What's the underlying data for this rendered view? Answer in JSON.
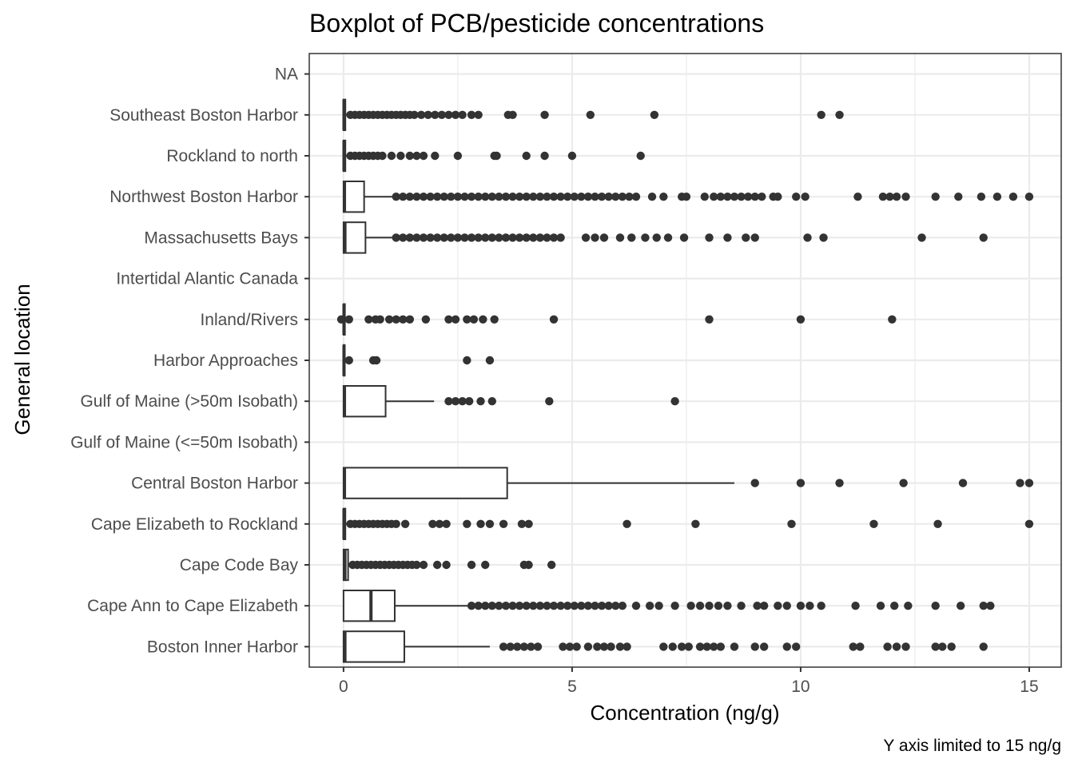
{
  "chart_data": {
    "type": "boxplot",
    "orientation": "horizontal",
    "title": "Boxplot of PCB/pesticide concentrations",
    "xlabel": "Concentration (ng/g)",
    "ylabel": "General location",
    "caption": "Y axis limited to 15 ng/g",
    "xlim": [
      -0.75,
      15.7
    ],
    "xticks": [
      0,
      5,
      10,
      15
    ],
    "grid": true,
    "theme": "bw",
    "colors": {
      "box": "#333333",
      "point": "#333333",
      "grid": "#ebebeb",
      "panel_border": "#333333"
    },
    "categories": [
      "NA",
      "Southeast Boston Harbor",
      "Rockland to north",
      "Northwest Boston Harbor",
      "Massachusetts Bays",
      "Intertidal Alantic Canada",
      "Inland/Rivers",
      "Harbor Approaches",
      "Gulf of Maine (>50m Isobath)",
      "Gulf of Maine (<=50m Isobath)",
      "Central Boston Harbor",
      "Cape Elizabeth to Rockland",
      "Cape Code Bay",
      "Cape Ann to Cape Elizabeth",
      "Boston Inner Harbor"
    ],
    "boxes": [
      null,
      {
        "min": 0,
        "q1": 0,
        "median": 0.01,
        "q3": 0.04,
        "max": 0.07,
        "outliers": [
          0.15,
          0.25,
          0.35,
          0.45,
          0.55,
          0.65,
          0.75,
          0.85,
          0.95,
          1.05,
          1.15,
          1.25,
          1.35,
          1.45,
          1.55,
          1.7,
          1.85,
          2.0,
          2.15,
          2.3,
          2.45,
          2.6,
          2.8,
          2.95,
          3.6,
          3.7,
          4.4,
          5.4,
          6.8,
          10.45,
          10.85
        ]
      },
      {
        "min": 0,
        "q1": 0,
        "median": 0.01,
        "q3": 0.04,
        "max": 0.07,
        "outliers": [
          0.15,
          0.25,
          0.35,
          0.45,
          0.55,
          0.65,
          0.75,
          0.85,
          1.05,
          1.25,
          1.45,
          1.6,
          1.75,
          2.0,
          2.5,
          3.3,
          3.35,
          4.0,
          4.4,
          5.0,
          6.5
        ]
      },
      {
        "min": 0,
        "q1": 0,
        "median": 0.02,
        "q3": 0.45,
        "max": 1.1,
        "outliers": [
          1.15,
          1.3,
          1.45,
          1.6,
          1.75,
          1.9,
          2.05,
          2.2,
          2.35,
          2.5,
          2.65,
          2.8,
          2.95,
          3.1,
          3.25,
          3.4,
          3.55,
          3.7,
          3.85,
          4.0,
          4.15,
          4.3,
          4.45,
          4.6,
          4.75,
          4.9,
          5.05,
          5.2,
          5.35,
          5.5,
          5.65,
          5.8,
          5.95,
          6.1,
          6.25,
          6.4,
          6.75,
          7.0,
          7.4,
          7.5,
          7.9,
          8.1,
          8.25,
          8.4,
          8.55,
          8.7,
          8.85,
          9.0,
          9.15,
          9.4,
          9.5,
          9.9,
          10.1,
          11.25,
          11.8,
          11.95,
          12.1,
          12.3,
          12.95,
          13.45,
          13.95,
          14.3,
          14.65,
          15.0
        ]
      },
      {
        "min": 0,
        "q1": 0,
        "median": 0.03,
        "q3": 0.48,
        "max": 1.1,
        "outliers": [
          1.15,
          1.3,
          1.45,
          1.6,
          1.75,
          1.9,
          2.05,
          2.2,
          2.35,
          2.5,
          2.65,
          2.8,
          2.95,
          3.1,
          3.25,
          3.4,
          3.55,
          3.7,
          3.85,
          4.0,
          4.15,
          4.3,
          4.45,
          4.6,
          4.75,
          5.3,
          5.5,
          5.7,
          6.05,
          6.3,
          6.6,
          6.85,
          7.1,
          7.45,
          8.0,
          8.4,
          8.8,
          9.0,
          10.15,
          10.5,
          12.65,
          14.0
        ]
      },
      null,
      {
        "min": 0,
        "q1": 0,
        "median": 0.01,
        "q3": 0.03,
        "max": 0.05,
        "outliers": [
          -0.05,
          0.12,
          0.55,
          0.7,
          0.8,
          1.0,
          1.15,
          1.3,
          1.45,
          1.8,
          2.3,
          2.45,
          2.7,
          2.85,
          3.05,
          3.3,
          4.6,
          8.0,
          10.0,
          12.0
        ]
      },
      {
        "min": 0,
        "q1": 0,
        "median": 0.01,
        "q3": 0.02,
        "max": 0.04,
        "outliers": [
          0.12,
          0.65,
          0.72,
          2.7,
          3.2
        ]
      },
      {
        "min": 0,
        "q1": 0,
        "median": 0.02,
        "q3": 0.92,
        "max": 1.98,
        "outliers": [
          2.3,
          2.45,
          2.6,
          2.75,
          3.0,
          3.25,
          4.5,
          7.25
        ]
      },
      null,
      {
        "min": 0,
        "q1": 0,
        "median": 0.02,
        "q3": 3.58,
        "max": 8.55,
        "outliers": [
          9.0,
          10.0,
          10.85,
          12.25,
          13.55,
          14.8,
          15.0
        ]
      },
      {
        "min": 0,
        "q1": 0,
        "median": 0.01,
        "q3": 0.04,
        "max": 0.07,
        "outliers": [
          0.15,
          0.25,
          0.35,
          0.45,
          0.55,
          0.65,
          0.75,
          0.85,
          0.95,
          1.05,
          1.15,
          1.35,
          1.95,
          2.1,
          2.25,
          2.7,
          3.0,
          3.2,
          3.5,
          3.9,
          4.05,
          6.2,
          7.7,
          9.8,
          11.6,
          13.0,
          15.0
        ]
      },
      {
        "min": 0,
        "q1": 0,
        "median": 0.03,
        "q3": 0.1,
        "max": 0.15,
        "outliers": [
          0.2,
          0.3,
          0.4,
          0.5,
          0.6,
          0.7,
          0.8,
          0.9,
          1.0,
          1.1,
          1.2,
          1.3,
          1.4,
          1.5,
          1.6,
          1.75,
          2.05,
          2.25,
          2.8,
          3.1,
          3.95,
          4.05,
          4.55
        ]
      },
      {
        "min": 0,
        "q1": 0,
        "median": 0.6,
        "q3": 1.12,
        "max": 2.75,
        "outliers": [
          2.8,
          2.95,
          3.1,
          3.25,
          3.4,
          3.55,
          3.7,
          3.85,
          4.0,
          4.15,
          4.3,
          4.45,
          4.6,
          4.75,
          4.9,
          5.05,
          5.2,
          5.35,
          5.5,
          5.65,
          5.8,
          5.95,
          6.1,
          6.4,
          6.7,
          6.9,
          7.25,
          7.6,
          7.8,
          8.0,
          8.2,
          8.4,
          8.7,
          9.05,
          9.2,
          9.5,
          9.7,
          10.0,
          10.2,
          10.45,
          11.2,
          11.75,
          12.05,
          12.35,
          12.95,
          13.5,
          14.0,
          14.15
        ]
      },
      {
        "min": 0,
        "q1": 0,
        "median": 0.03,
        "q3": 1.33,
        "max": 3.2,
        "outliers": [
          3.5,
          3.65,
          3.8,
          3.95,
          4.1,
          4.25,
          4.8,
          4.95,
          5.1,
          5.35,
          5.55,
          5.7,
          5.85,
          6.05,
          6.2,
          7.0,
          7.2,
          7.4,
          7.55,
          7.8,
          7.95,
          8.1,
          8.25,
          8.55,
          9.0,
          9.2,
          9.7,
          9.9,
          11.15,
          11.3,
          11.9,
          12.1,
          12.3,
          12.95,
          13.1,
          13.3,
          14.0
        ]
      }
    ]
  }
}
